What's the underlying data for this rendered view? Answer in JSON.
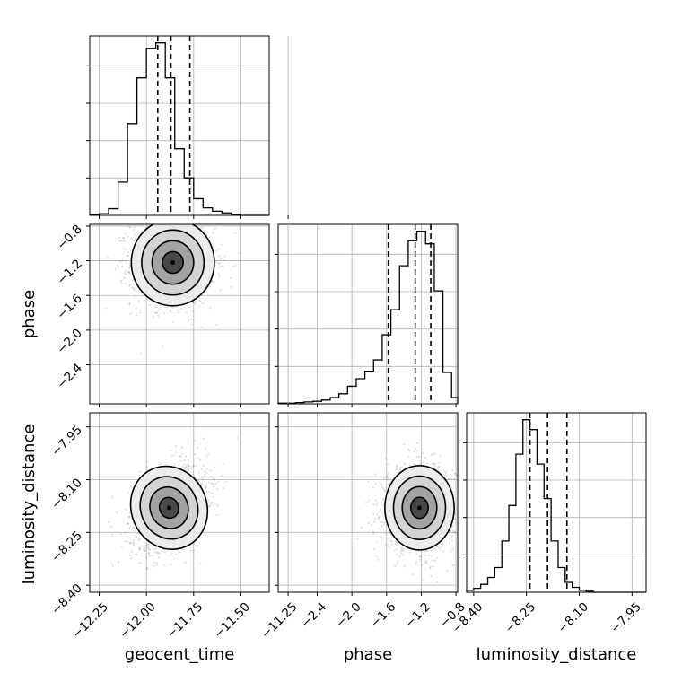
{
  "chart_data": {
    "type": "corner",
    "parameters": [
      "geocent_time",
      "phase",
      "luminosity_distance"
    ],
    "labels": {
      "geocent_time": "geocent_time",
      "phase": "phase",
      "luminosity_distance": "luminosity_distance"
    },
    "ranges": {
      "geocent_time": [
        -12.3,
        -11.35
      ],
      "phase": [
        -2.85,
        -0.78
      ],
      "luminosity_distance": [
        -8.42,
        -7.91
      ]
    },
    "ticks": {
      "geocent_time": [
        -12.25,
        -12.0,
        -11.75,
        -11.5,
        -11.25
      ],
      "phase": [
        -2.4,
        -2.0,
        -1.6,
        -1.2,
        -0.8
      ],
      "luminosity_distance": [
        -8.4,
        -8.25,
        -8.1,
        -7.95
      ]
    },
    "tick_labels": {
      "geocent_time": [
        "−12.25",
        "−12.00",
        "−11.75",
        "−11.50",
        "−11.25"
      ],
      "phase": [
        "−2.4",
        "−2.0",
        "−1.6",
        "−1.2",
        "−0.8"
      ],
      "luminosity_distance": [
        "−8.40",
        "−8.25",
        "−8.10",
        "−7.95"
      ]
    },
    "histograms": {
      "geocent_time": {
        "bin_edges": [
          -12.3,
          -12.25,
          -12.2,
          -12.15,
          -12.1,
          -12.05,
          -12.0,
          -11.95,
          -11.9,
          -11.85,
          -11.8,
          -11.75,
          -11.7,
          -11.65,
          -11.6,
          -11.55,
          -11.5,
          -11.45,
          -11.4,
          -11.35
        ],
        "counts": [
          1,
          2,
          8,
          40,
          110,
          165,
          200,
          207,
          165,
          80,
          45,
          20,
          9,
          5,
          3,
          1,
          0,
          0,
          0
        ],
        "quantiles": [
          -11.94,
          -11.87,
          -11.77
        ]
      },
      "phase": {
        "bin_edges": [
          -2.85,
          -2.75,
          -2.65,
          -2.55,
          -2.45,
          -2.35,
          -2.25,
          -2.15,
          -2.05,
          -1.95,
          -1.85,
          -1.75,
          -1.65,
          -1.55,
          -1.45,
          -1.35,
          -1.25,
          -1.15,
          -1.05,
          -0.95,
          -0.85,
          -0.78
        ],
        "counts": [
          1,
          1,
          2,
          3,
          4,
          6,
          10,
          16,
          28,
          40,
          52,
          70,
          110,
          150,
          220,
          260,
          275,
          255,
          180,
          50,
          10
        ],
        "quantiles": [
          -1.58,
          -1.27,
          -1.09
        ]
      },
      "luminosity_distance": {
        "bin_edges": [
          -8.42,
          -8.4,
          -8.38,
          -8.36,
          -8.34,
          -8.32,
          -8.3,
          -8.28,
          -8.26,
          -8.24,
          -8.22,
          -8.2,
          -8.18,
          -8.16,
          -8.14,
          -8.12,
          -8.1,
          -8.08,
          -8.06,
          -8.04,
          -8.02,
          -8.0,
          -7.98,
          -7.96,
          -7.94,
          -7.92,
          -7.91
        ],
        "counts": [
          2,
          4,
          8,
          15,
          25,
          52,
          88,
          140,
          175,
          165,
          130,
          95,
          52,
          25,
          10,
          5,
          2,
          1,
          0,
          0,
          0,
          0,
          0,
          0,
          0,
          0
        ],
        "quantiles": [
          -8.24,
          -8.19,
          -8.135
        ]
      }
    },
    "joint": {
      "phase_vs_geocent_time": {
        "x": "geocent_time",
        "y": "phase",
        "center": [
          -11.86,
          -1.22
        ],
        "spread": [
          0.11,
          0.25
        ],
        "correlation": 0.0
      },
      "luminosity_distance_vs_geocent_time": {
        "x": "geocent_time",
        "y": "luminosity_distance",
        "center": [
          -11.88,
          -8.18
        ],
        "spread": [
          0.1,
          0.06
        ],
        "correlation": 0.35
      },
      "luminosity_distance_vs_phase": {
        "x": "phase",
        "y": "luminosity_distance",
        "center": [
          -1.22,
          -8.18
        ],
        "spread": [
          0.2,
          0.06
        ],
        "correlation": 0.0
      }
    },
    "grid": true
  }
}
